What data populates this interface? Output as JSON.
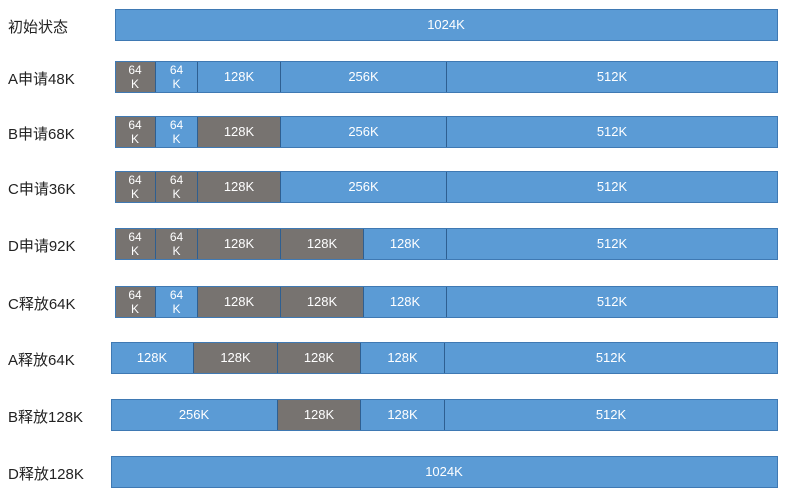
{
  "rows": [
    {
      "label": "初始状态",
      "segments": [
        {
          "text": "1024K",
          "size": 1024,
          "state": "free"
        }
      ]
    },
    {
      "label": "A申请48K",
      "segments": [
        {
          "text": "64\nK",
          "size": 64,
          "state": "used"
        },
        {
          "text": "64\nK",
          "size": 64,
          "state": "free"
        },
        {
          "text": "128K",
          "size": 128,
          "state": "free"
        },
        {
          "text": "256K",
          "size": 256,
          "state": "free"
        },
        {
          "text": "512K",
          "size": 512,
          "state": "free"
        }
      ]
    },
    {
      "label": "B申请68K",
      "segments": [
        {
          "text": "64\nK",
          "size": 64,
          "state": "used"
        },
        {
          "text": "64\nK",
          "size": 64,
          "state": "free"
        },
        {
          "text": "128K",
          "size": 128,
          "state": "used"
        },
        {
          "text": "256K",
          "size": 256,
          "state": "free"
        },
        {
          "text": "512K",
          "size": 512,
          "state": "free"
        }
      ]
    },
    {
      "label": "C申请36K",
      "segments": [
        {
          "text": "64\nK",
          "size": 64,
          "state": "used"
        },
        {
          "text": "64\nK",
          "size": 64,
          "state": "used"
        },
        {
          "text": "128K",
          "size": 128,
          "state": "used"
        },
        {
          "text": "256K",
          "size": 256,
          "state": "free"
        },
        {
          "text": "512K",
          "size": 512,
          "state": "free"
        }
      ]
    },
    {
      "label": "D申请92K",
      "segments": [
        {
          "text": "64\nK",
          "size": 64,
          "state": "used"
        },
        {
          "text": "64\nK",
          "size": 64,
          "state": "used"
        },
        {
          "text": "128K",
          "size": 128,
          "state": "used"
        },
        {
          "text": "128K",
          "size": 128,
          "state": "used"
        },
        {
          "text": "128K",
          "size": 128,
          "state": "free"
        },
        {
          "text": "512K",
          "size": 512,
          "state": "free"
        }
      ]
    },
    {
      "label": "C释放64K",
      "segments": [
        {
          "text": "64\nK",
          "size": 64,
          "state": "used"
        },
        {
          "text": "64\nK",
          "size": 64,
          "state": "free"
        },
        {
          "text": "128K",
          "size": 128,
          "state": "used"
        },
        {
          "text": "128K",
          "size": 128,
          "state": "used"
        },
        {
          "text": "128K",
          "size": 128,
          "state": "free"
        },
        {
          "text": "512K",
          "size": 512,
          "state": "free"
        }
      ]
    },
    {
      "label": "A释放64K",
      "segments": [
        {
          "text": "128K",
          "size": 128,
          "state": "free"
        },
        {
          "text": "128K",
          "size": 128,
          "state": "used"
        },
        {
          "text": "128K",
          "size": 128,
          "state": "used"
        },
        {
          "text": "128K",
          "size": 128,
          "state": "free"
        },
        {
          "text": "512K",
          "size": 512,
          "state": "free"
        }
      ]
    },
    {
      "label": "B释放128K",
      "segments": [
        {
          "text": "256K",
          "size": 256,
          "state": "free"
        },
        {
          "text": "128K",
          "size": 128,
          "state": "used"
        },
        {
          "text": "128K",
          "size": 128,
          "state": "free"
        },
        {
          "text": "512K",
          "size": 512,
          "state": "free"
        }
      ]
    },
    {
      "label": "D释放128K",
      "segments": [
        {
          "text": "1024K",
          "size": 1024,
          "state": "free"
        }
      ]
    }
  ],
  "colors": {
    "free": "#5b9bd5",
    "used": "#777370"
  }
}
